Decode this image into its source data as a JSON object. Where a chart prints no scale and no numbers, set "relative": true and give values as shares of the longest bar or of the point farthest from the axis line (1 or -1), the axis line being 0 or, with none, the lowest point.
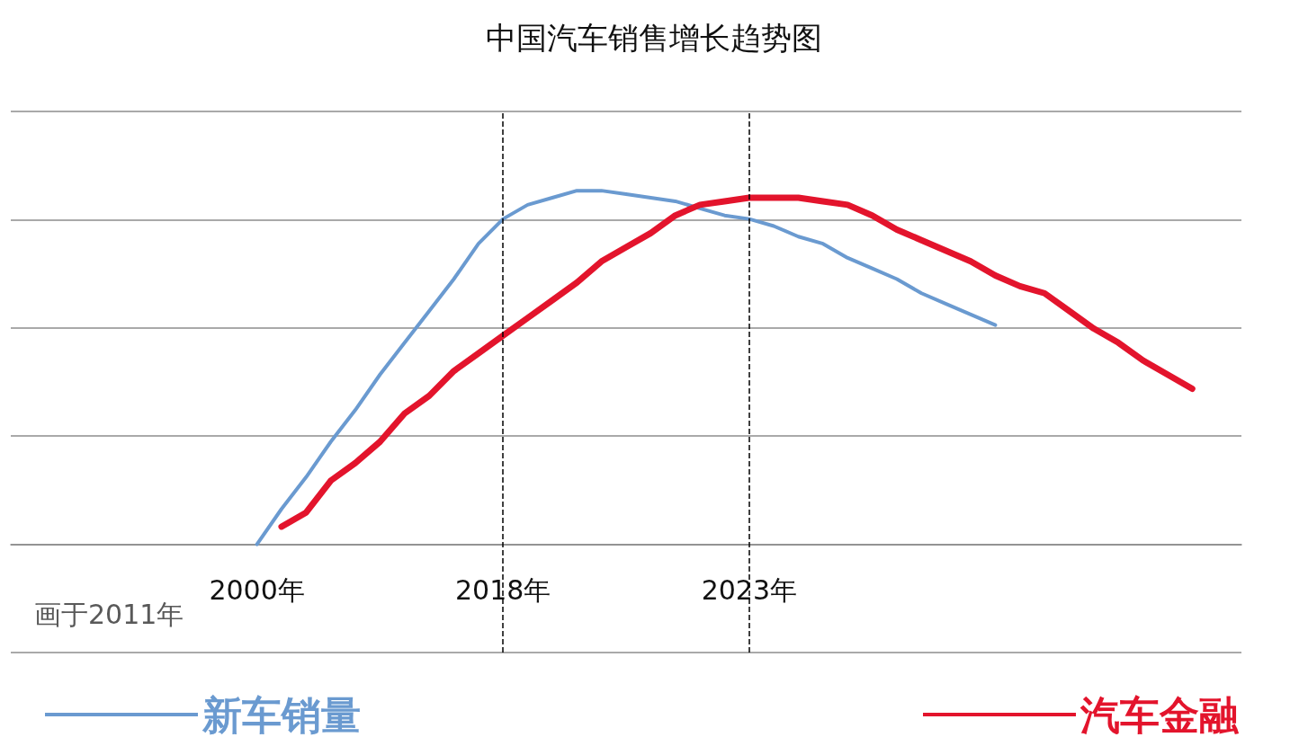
{
  "chart_data": {
    "type": "line",
    "title": "中国汽车销售增长趋势图",
    "relative": true,
    "categories": [
      null,
      null,
      null,
      null,
      null,
      null,
      null,
      null,
      null,
      null,
      "2000年",
      null,
      null,
      null,
      null,
      null,
      null,
      null,
      null,
      null,
      "2018年",
      null,
      null,
      null,
      null,
      null,
      null,
      null,
      null,
      null,
      "2023年",
      null,
      null,
      null,
      null,
      null,
      null,
      null,
      null,
      null,
      null,
      null,
      null,
      null,
      null,
      null,
      null,
      null,
      null,
      null,
      null
    ],
    "series": [
      {
        "name": "新车销量",
        "color": "#6a9ad0",
        "values": [
          null,
          null,
          null,
          null,
          null,
          null,
          null,
          null,
          null,
          null,
          0,
          0.1,
          0.19,
          0.29,
          0.38,
          0.48,
          0.57,
          0.66,
          0.75,
          0.85,
          0.92,
          0.96,
          0.98,
          1,
          1,
          0.99,
          0.98,
          0.97,
          0.95,
          0.93,
          0.92,
          0.9,
          0.87,
          0.85,
          0.81,
          0.78,
          0.75,
          0.71,
          0.68,
          0.65,
          0.62,
          null,
          null,
          null,
          null,
          null,
          null,
          null,
          null,
          null,
          null
        ]
      },
      {
        "name": "汽车金融",
        "color": "#e3142c",
        "values": [
          null,
          null,
          null,
          null,
          null,
          null,
          null,
          null,
          null,
          null,
          null,
          0.05,
          0.09,
          0.18,
          0.23,
          0.29,
          0.37,
          0.42,
          0.49,
          0.54,
          0.59,
          0.64,
          0.69,
          0.74,
          0.8,
          0.84,
          0.88,
          0.93,
          0.96,
          0.97,
          0.98,
          0.98,
          0.98,
          0.97,
          0.96,
          0.93,
          0.89,
          0.86,
          0.83,
          0.8,
          0.76,
          0.73,
          0.71,
          0.66,
          0.61,
          0.57,
          0.52,
          0.48,
          0.44,
          null,
          null
        ]
      }
    ],
    "ref_lines": [
      {
        "axis": "x",
        "value": "2018年",
        "line_style": "dashed",
        "color": "#000000"
      },
      {
        "axis": "x",
        "value": "2023年",
        "line_style": "dashed",
        "color": "#000000"
      }
    ],
    "annotations": [
      "画于2011年"
    ],
    "grid": "y",
    "legend": "bottom",
    "marker": "none",
    "line_style": "solid"
  }
}
